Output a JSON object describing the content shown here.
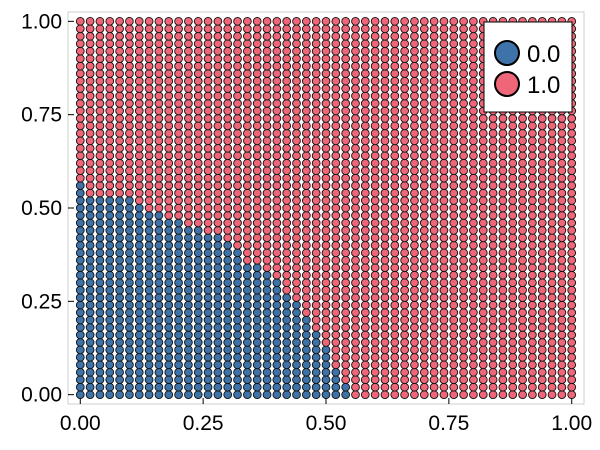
{
  "chart_data": {
    "type": "scatter",
    "title": "",
    "xlabel": "",
    "ylabel": "",
    "xlim": [
      -0.025,
      1.025
    ],
    "ylim": [
      -0.025,
      1.025
    ],
    "grid": false,
    "x_ticks": [
      "0.00",
      "0.25",
      "0.50",
      "0.75",
      "1.00"
    ],
    "y_ticks": [
      "0.00",
      "0.25",
      "0.50",
      "0.75",
      "1.00"
    ],
    "legend_position": "top-right",
    "grid_spacing": 0.02,
    "grid_range": [
      0,
      1
    ],
    "series": [
      {
        "name": "0.0",
        "color": "#3d73a9",
        "description": "points in the lower-left region",
        "boundary_by_x": [
          {
            "x_max": 0.0,
            "y_max": 0.56
          },
          {
            "x_max": 0.1,
            "y_max": 0.52
          },
          {
            "x_max": 0.12,
            "y_max": 0.5
          },
          {
            "x_max": 0.16,
            "y_max": 0.48
          },
          {
            "x_max": 0.2,
            "y_max": 0.46
          },
          {
            "x_max": 0.24,
            "y_max": 0.44
          },
          {
            "x_max": 0.28,
            "y_max": 0.42
          },
          {
            "x_max": 0.3,
            "y_max": 0.4
          },
          {
            "x_max": 0.32,
            "y_max": 0.38
          },
          {
            "x_max": 0.36,
            "y_max": 0.34
          },
          {
            "x_max": 0.38,
            "y_max": 0.32
          },
          {
            "x_max": 0.4,
            "y_max": 0.3
          },
          {
            "x_max": 0.42,
            "y_max": 0.26
          },
          {
            "x_max": 0.44,
            "y_max": 0.24
          },
          {
            "x_max": 0.46,
            "y_max": 0.2
          },
          {
            "x_max": 0.48,
            "y_max": 0.16
          },
          {
            "x_max": 0.5,
            "y_max": 0.12
          },
          {
            "x_max": 0.52,
            "y_max": 0.06
          },
          {
            "x_max": 0.54,
            "y_max": 0.02
          }
        ]
      },
      {
        "name": "1.0",
        "color": "#ee6677",
        "description": "all remaining points"
      }
    ]
  }
}
